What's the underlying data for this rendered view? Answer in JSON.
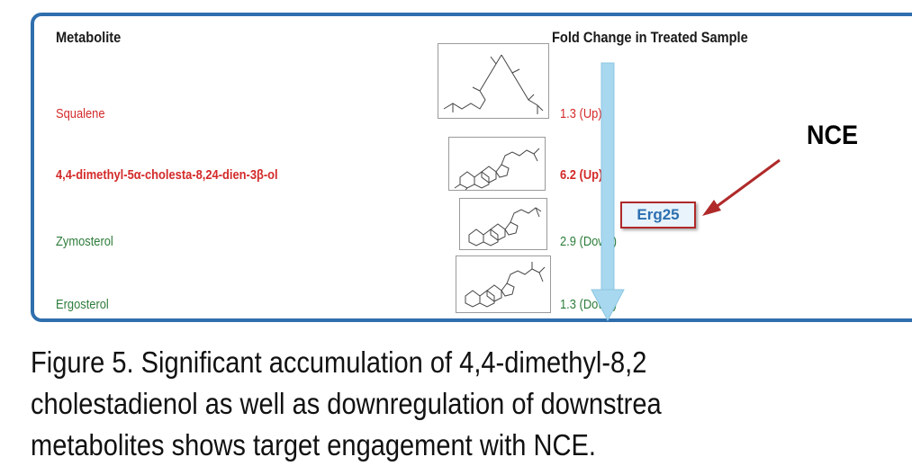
{
  "headers": {
    "metabolite": "Metabolite",
    "fold_change": "Fold Change in Treated Sample"
  },
  "rows": [
    {
      "name": "Squalene",
      "fold": "1.3 (Up)",
      "color": "#d42a2a",
      "bold": false
    },
    {
      "name": "4,4-dimethyl-5α-cholesta-8,24-dien-3β-ol",
      "fold": "6.2 (Up)",
      "color": "#d42a2a",
      "bold": true
    },
    {
      "name": "Zymosterol",
      "fold": "2.9 (Down)",
      "color": "#2e7d3a",
      "bold": false
    },
    {
      "name": "Ergosterol",
      "fold": "1.3 (Down)",
      "color": "#2e7d3a",
      "bold": false
    }
  ],
  "enzyme_label": "Erg25",
  "compound_label": "NCE",
  "caption": {
    "line1": "Figure 5. Significant accumulation of 4,4-dimethyl-8,2",
    "line2": "cholestadienol as well as downregulation of downstrea",
    "line3": "metabolites shows target engagement with NCE."
  },
  "colors": {
    "panel_border": "#2f6fad",
    "pathway_arrow": "#a8d8ef",
    "pointer_arrow": "#b02a2a"
  }
}
